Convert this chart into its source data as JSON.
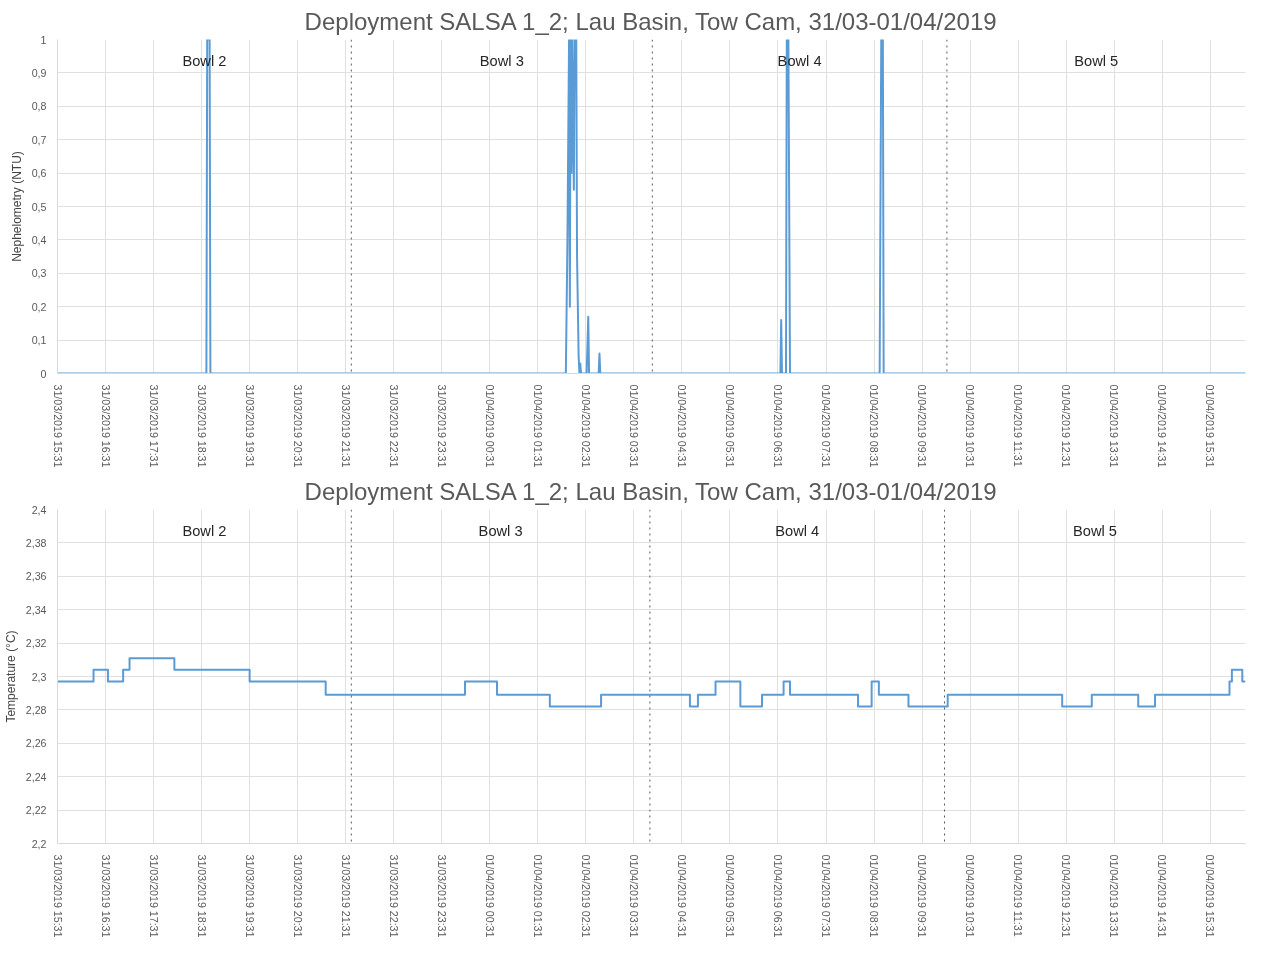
{
  "chart_data": [
    {
      "type": "line",
      "title": "Deployment SALSA 1_2; Lau Basin, Tow Cam, 31/03-01/04/2019",
      "ylabel": "Nephelometry (NTU)",
      "x": [
        "2019-03-31T15:31",
        "2019-03-31T18:37",
        "2019-03-31T18:38",
        "2019-03-31T18:41",
        "2019-03-31T18:42",
        "2019-04-01T02:06",
        "2019-04-01T02:08",
        "2019-04-01T02:10",
        "2019-04-01T02:11",
        "2019-04-01T02:12",
        "2019-04-01T02:13",
        "2019-04-01T02:14",
        "2019-04-01T02:16",
        "2019-04-01T02:17",
        "2019-04-01T02:18",
        "2019-04-01T02:19",
        "2019-04-01T02:20",
        "2019-04-01T02:22",
        "2019-04-01T02:23",
        "2019-04-01T02:24",
        "2019-04-01T02:25",
        "2019-04-01T02:32",
        "2019-04-01T02:34",
        "2019-04-01T02:35",
        "2019-04-01T02:47",
        "2019-04-01T02:48",
        "2019-04-01T02:49",
        "2019-04-01T06:34",
        "2019-04-01T06:35",
        "2019-04-01T06:36",
        "2019-04-01T06:41",
        "2019-04-01T06:42",
        "2019-04-01T06:44",
        "2019-04-01T06:46",
        "2019-04-01T08:38",
        "2019-04-01T08:40",
        "2019-04-01T08:42",
        "2019-04-01T08:43",
        "2019-04-01T16:15"
      ],
      "series": [
        {
          "color": "#5b9bd5",
          "values": [
            0,
            0,
            1,
            1,
            0,
            0,
            0.4,
            1,
            0.2,
            1,
            0.6,
            1,
            0.55,
            1,
            0.9,
            1,
            0.35,
            0.05,
            0,
            0.03,
            0,
            0,
            0.17,
            0,
            0,
            0.06,
            0,
            0,
            0.16,
            0,
            0,
            1,
            1,
            0,
            0,
            1,
            1,
            0,
            0
          ]
        }
      ],
      "xlim": [
        "2019-03-31T15:31",
        "2019-04-01T16:15"
      ],
      "xticks": [
        {
          "value": "2019-03-31T15:31",
          "label": "31/03/2019 15:31"
        },
        {
          "value": "2019-03-31T16:31",
          "label": "31/03/2019 16:31"
        },
        {
          "value": "2019-03-31T17:31",
          "label": "31/03/2019 17:31"
        },
        {
          "value": "2019-03-31T18:31",
          "label": "31/03/2019 18:31"
        },
        {
          "value": "2019-03-31T19:31",
          "label": "31/03/2019 19:31"
        },
        {
          "value": "2019-03-31T20:31",
          "label": "31/03/2019 20:31"
        },
        {
          "value": "2019-03-31T21:31",
          "label": "31/03/2019 21:31"
        },
        {
          "value": "2019-03-31T22:31",
          "label": "31/03/2019 22:31"
        },
        {
          "value": "2019-03-31T23:31",
          "label": "31/03/2019 23:31"
        },
        {
          "value": "2019-04-01T00:31",
          "label": "01/04/2019 00:31"
        },
        {
          "value": "2019-04-01T01:31",
          "label": "01/04/2019 01:31"
        },
        {
          "value": "2019-04-01T02:31",
          "label": "01/04/2019 02:31"
        },
        {
          "value": "2019-04-01T03:31",
          "label": "01/04/2019 03:31"
        },
        {
          "value": "2019-04-01T04:31",
          "label": "01/04/2019 04:31"
        },
        {
          "value": "2019-04-01T05:31",
          "label": "01/04/2019 05:31"
        },
        {
          "value": "2019-04-01T06:31",
          "label": "01/04/2019 06:31"
        },
        {
          "value": "2019-04-01T07:31",
          "label": "01/04/2019 07:31"
        },
        {
          "value": "2019-04-01T08:31",
          "label": "01/04/2019 08:31"
        },
        {
          "value": "2019-04-01T09:31",
          "label": "01/04/2019 09:31"
        },
        {
          "value": "2019-04-01T10:31",
          "label": "01/04/2019 10:31"
        },
        {
          "value": "2019-04-01T11:31",
          "label": "01/04/2019 11:31"
        },
        {
          "value": "2019-04-01T12:31",
          "label": "01/04/2019 12:31"
        },
        {
          "value": "2019-04-01T13:31",
          "label": "01/04/2019 13:31"
        },
        {
          "value": "2019-04-01T14:31",
          "label": "01/04/2019 14:31"
        },
        {
          "value": "2019-04-01T15:31",
          "label": "01/04/2019 15:31"
        }
      ],
      "ylim": [
        0,
        1
      ],
      "yticks": [
        0,
        {
          "value": 0.1,
          "label": "0,1"
        },
        {
          "value": 0.2,
          "label": "0,2"
        },
        {
          "value": 0.3,
          "label": "0,3"
        },
        {
          "value": 0.4,
          "label": "0,4"
        },
        {
          "value": 0.5,
          "label": "0,5"
        },
        {
          "value": 0.6,
          "label": "0,6"
        },
        {
          "value": 0.7,
          "label": "0,7"
        },
        {
          "value": 0.8,
          "label": "0,8"
        },
        {
          "value": 0.9,
          "label": "0,9"
        },
        1
      ],
      "ref_lines": [
        {
          "axis": "x",
          "value": "2019-03-31T21:38",
          "color": "#595959",
          "line_style": "dotted"
        },
        {
          "axis": "x",
          "value": "2019-04-01T03:54",
          "color": "#595959",
          "line_style": "dotted"
        },
        {
          "axis": "x",
          "value": "2019-04-01T10:02",
          "color": "#595959",
          "line_style": "dotted"
        }
      ],
      "annotations": [
        "Bowl 2",
        "Bowl 3",
        "Bowl 4",
        "Bowl 5"
      ],
      "grid": true,
      "line_style": "solid"
    },
    {
      "type": "step",
      "title": "Deployment SALSA 1_2; Lau Basin, Tow Cam, 31/03-01/04/2019",
      "ylabel": "Temperature (°C)",
      "x": [
        "2019-03-31T15:31",
        "2019-03-31T16:16",
        "2019-03-31T16:34",
        "2019-03-31T16:53",
        "2019-03-31T17:01",
        "2019-03-31T17:57",
        "2019-03-31T19:31",
        "2019-03-31T21:06",
        "2019-04-01T00:00",
        "2019-04-01T00:40",
        "2019-04-01T01:46",
        "2019-04-01T02:50",
        "2019-04-01T04:41",
        "2019-04-01T04:51",
        "2019-04-01T05:13",
        "2019-04-01T05:44",
        "2019-04-01T06:11",
        "2019-04-01T06:38",
        "2019-04-01T06:46",
        "2019-04-01T08:11",
        "2019-04-01T08:28",
        "2019-04-01T08:37",
        "2019-04-01T09:14",
        "2019-04-01T10:03",
        "2019-04-01T12:26",
        "2019-04-01T13:03",
        "2019-04-01T14:01",
        "2019-04-01T14:22",
        "2019-04-01T15:55",
        "2019-04-01T15:58",
        "2019-04-01T16:11",
        "2019-04-01T16:15"
      ],
      "series": [
        {
          "color": "#5b9bd5",
          "values": [
            2.297,
            2.304,
            2.297,
            2.304,
            2.311,
            2.304,
            2.297,
            2.289,
            2.297,
            2.289,
            2.282,
            2.289,
            2.282,
            2.289,
            2.297,
            2.282,
            2.289,
            2.297,
            2.289,
            2.282,
            2.297,
            2.289,
            2.282,
            2.289,
            2.282,
            2.289,
            2.282,
            2.289,
            2.297,
            2.304,
            2.297,
            2.297
          ]
        }
      ],
      "xlim": [
        "2019-03-31T15:31",
        "2019-04-01T16:15"
      ],
      "xticks": [
        {
          "value": "2019-03-31T15:31",
          "label": "31/03/2019 15:31"
        },
        {
          "value": "2019-03-31T16:31",
          "label": "31/03/2019 16:31"
        },
        {
          "value": "2019-03-31T17:31",
          "label": "31/03/2019 17:31"
        },
        {
          "value": "2019-03-31T18:31",
          "label": "31/03/2019 18:31"
        },
        {
          "value": "2019-03-31T19:31",
          "label": "31/03/2019 19:31"
        },
        {
          "value": "2019-03-31T20:31",
          "label": "31/03/2019 20:31"
        },
        {
          "value": "2019-03-31T21:31",
          "label": "31/03/2019 21:31"
        },
        {
          "value": "2019-03-31T22:31",
          "label": "31/03/2019 22:31"
        },
        {
          "value": "2019-03-31T23:31",
          "label": "31/03/2019 23:31"
        },
        {
          "value": "2019-04-01T00:31",
          "label": "01/04/2019 00:31"
        },
        {
          "value": "2019-04-01T01:31",
          "label": "01/04/2019 01:31"
        },
        {
          "value": "2019-04-01T02:31",
          "label": "01/04/2019 02:31"
        },
        {
          "value": "2019-04-01T03:31",
          "label": "01/04/2019 03:31"
        },
        {
          "value": "2019-04-01T04:31",
          "label": "01/04/2019 04:31"
        },
        {
          "value": "2019-04-01T05:31",
          "label": "01/04/2019 05:31"
        },
        {
          "value": "2019-04-01T06:31",
          "label": "01/04/2019 06:31"
        },
        {
          "value": "2019-04-01T07:31",
          "label": "01/04/2019 07:31"
        },
        {
          "value": "2019-04-01T08:31",
          "label": "01/04/2019 08:31"
        },
        {
          "value": "2019-04-01T09:31",
          "label": "01/04/2019 09:31"
        },
        {
          "value": "2019-04-01T10:31",
          "label": "01/04/2019 10:31"
        },
        {
          "value": "2019-04-01T11:31",
          "label": "01/04/2019 11:31"
        },
        {
          "value": "2019-04-01T12:31",
          "label": "01/04/2019 12:31"
        },
        {
          "value": "2019-04-01T13:31",
          "label": "01/04/2019 13:31"
        },
        {
          "value": "2019-04-01T14:31",
          "label": "01/04/2019 14:31"
        },
        {
          "value": "2019-04-01T15:31",
          "label": "01/04/2019 15:31"
        }
      ],
      "ylim": [
        2.2,
        2.4
      ],
      "yticks": [
        {
          "value": 2.2,
          "label": "2,2"
        },
        {
          "value": 2.22,
          "label": "2,22"
        },
        {
          "value": 2.24,
          "label": "2,24"
        },
        {
          "value": 2.26,
          "label": "2,26"
        },
        {
          "value": 2.28,
          "label": "2,28"
        },
        {
          "value": 2.3,
          "label": "2,3"
        },
        {
          "value": 2.32,
          "label": "2,32"
        },
        {
          "value": 2.34,
          "label": "2,34"
        },
        {
          "value": 2.36,
          "label": "2,36"
        },
        {
          "value": 2.38,
          "label": "2,38"
        },
        {
          "value": 2.4,
          "label": "2,4"
        }
      ],
      "ref_lines": [
        {
          "axis": "x",
          "value": "2019-03-31T21:38",
          "color": "#595959",
          "line_style": "dotted"
        },
        {
          "axis": "x",
          "value": "2019-04-01T03:51",
          "color": "#595959",
          "line_style": "dotted"
        },
        {
          "axis": "x",
          "value": "2019-04-01T09:59",
          "color": "#595959",
          "line_style": "dotted"
        }
      ],
      "annotations": [
        "Bowl 2",
        "Bowl 3",
        "Bowl 4",
        "Bowl 5"
      ],
      "grid": true,
      "line_style": "solid"
    }
  ]
}
